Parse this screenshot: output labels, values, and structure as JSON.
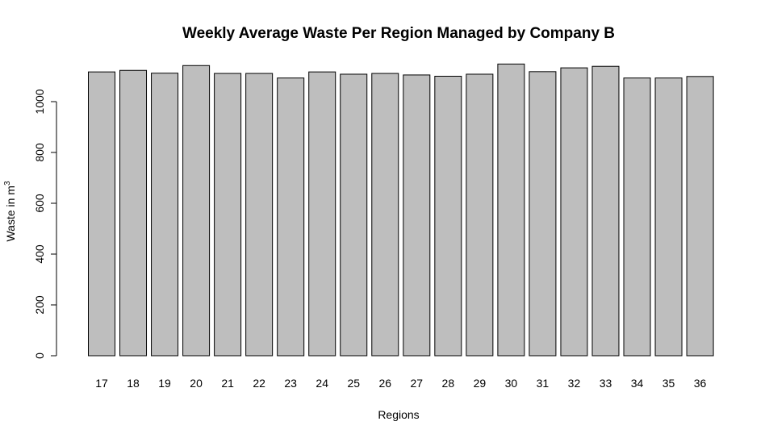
{
  "chart_data": {
    "type": "bar",
    "title": "Weekly Average Waste Per Region Managed by Company B",
    "xlabel": "Regions",
    "ylabel": "Waste in m",
    "ylabel_superscript": "3",
    "categories": [
      "17",
      "18",
      "19",
      "20",
      "21",
      "22",
      "23",
      "24",
      "25",
      "26",
      "27",
      "28",
      "29",
      "30",
      "31",
      "32",
      "33",
      "34",
      "35",
      "36"
    ],
    "values": [
      1117,
      1123,
      1112,
      1142,
      1111,
      1111,
      1093,
      1117,
      1108,
      1111,
      1105,
      1100,
      1108,
      1148,
      1118,
      1133,
      1139,
      1093,
      1093,
      1099
    ],
    "yticks": [
      "0",
      "200",
      "400",
      "600",
      "800",
      "1000"
    ],
    "ylim": [
      0,
      1160
    ],
    "grid": false,
    "bar_color": "#bebebe",
    "bar_border_color": "#000000"
  }
}
